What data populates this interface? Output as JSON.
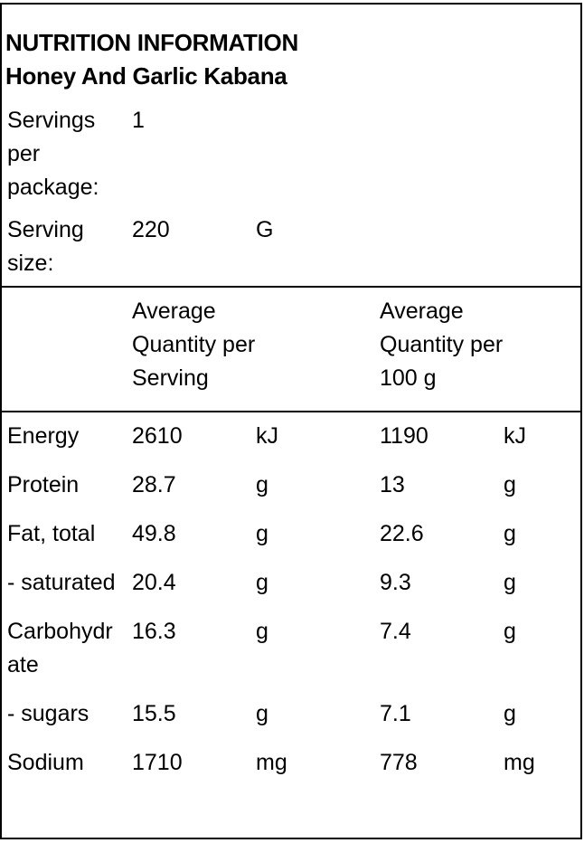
{
  "header": {
    "title": "NUTRITION INFORMATION",
    "subtitle": "Honey And Garlic Kabana"
  },
  "serving_info": {
    "rows": [
      [
        "Servings per package:",
        1
      ],
      [
        "Serving size:",
        220,
        "G"
      ]
    ]
  },
  "nutrients": {
    "columns": [
      "Average Quantity per Serving",
      "Average Quantity per 100 g"
    ],
    "rows": [
      [
        "Energy",
        2610,
        "kJ",
        1190,
        "kJ"
      ],
      [
        "Protein",
        28.7,
        "g",
        13,
        "g"
      ],
      [
        "Fat, total",
        49.8,
        "g",
        22.6,
        "g"
      ],
      [
        "- saturated",
        20.4,
        "g",
        9.3,
        "g"
      ],
      [
        "Carbohydrate",
        16.3,
        "g",
        7.4,
        "g"
      ],
      [
        "- sugars",
        15.5,
        "g",
        7.1,
        "g"
      ],
      [
        "Sodium",
        1710,
        "mg",
        778,
        "mg"
      ]
    ]
  }
}
